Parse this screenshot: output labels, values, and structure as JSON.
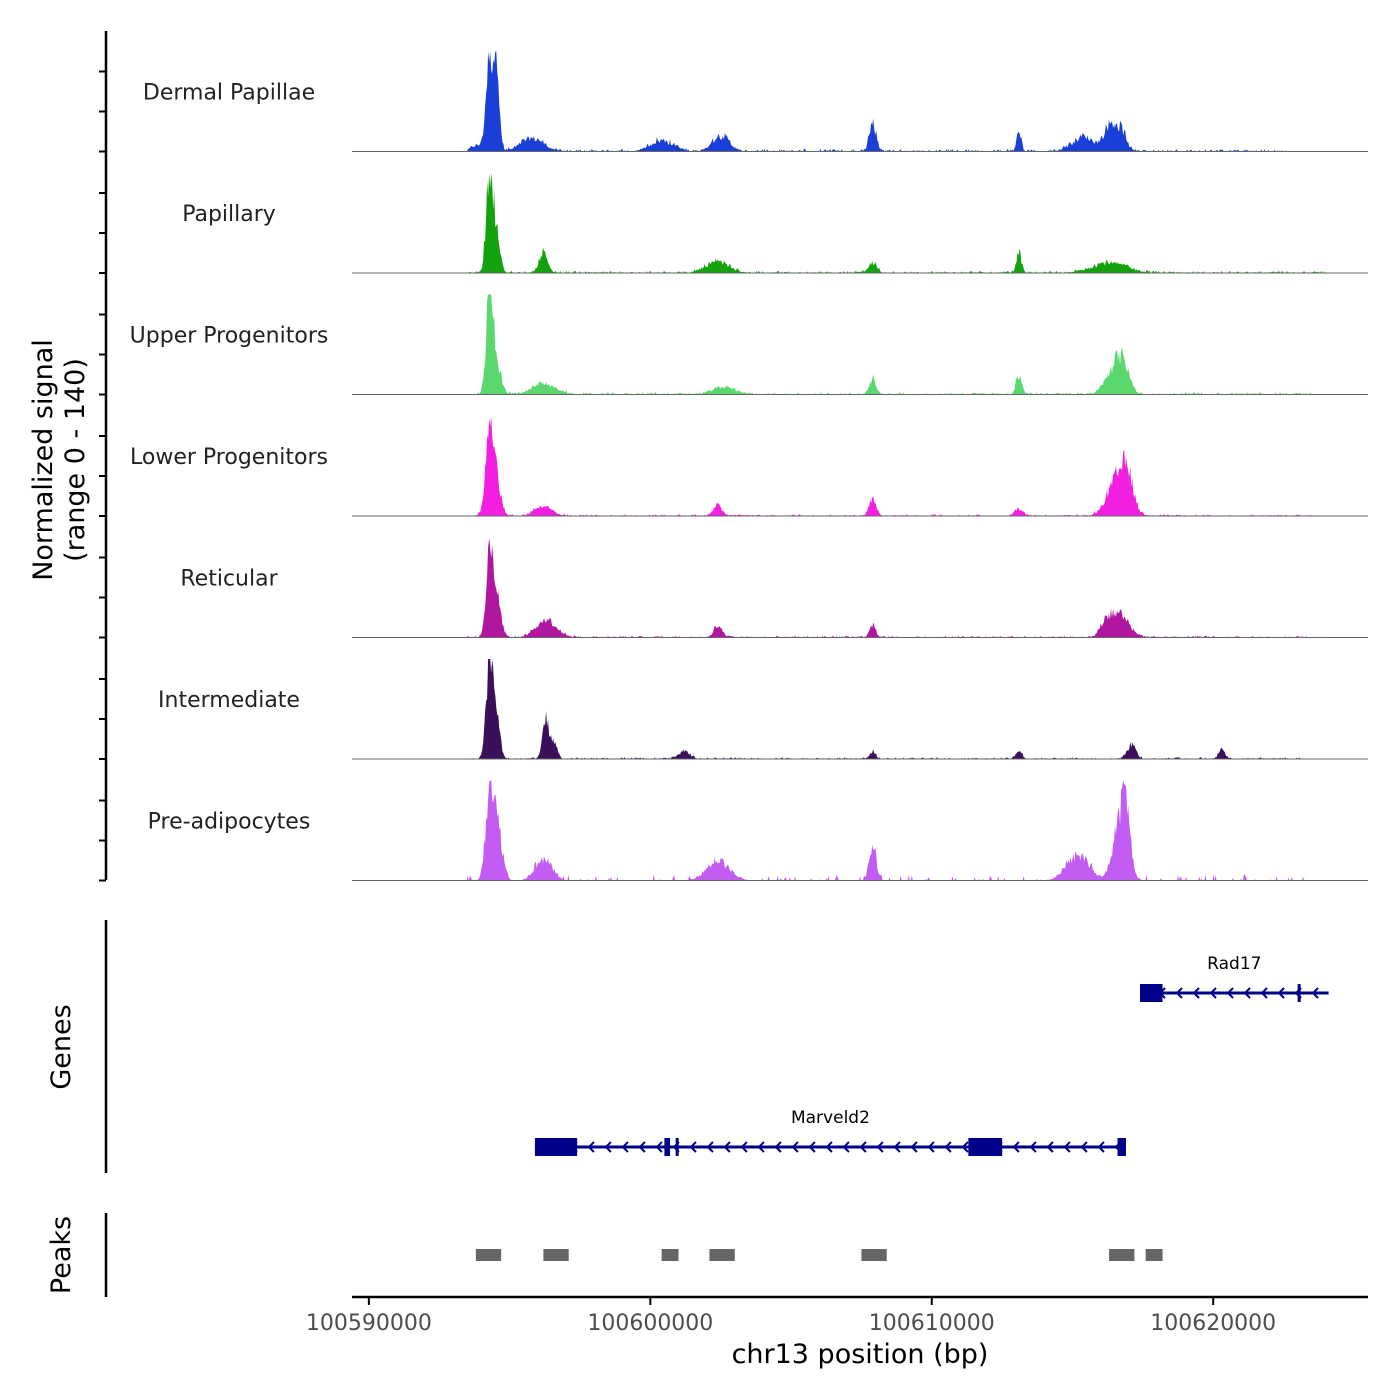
{
  "chart_data": {
    "type": "area",
    "title": "",
    "chromosome": "chr13",
    "xlabel": "chr13 position (bp)",
    "ylabel_line1": "Normalized signal",
    "ylabel_line2": "(range 0 - 140)",
    "ylim": [
      0,
      140
    ],
    "xlim": [
      100589400,
      100625500
    ],
    "x_ticks": [
      100590000,
      100600000,
      100610000,
      100620000
    ],
    "x_tick_labels": [
      "100590000",
      "100600000",
      "100610000",
      "100620000"
    ],
    "tracks": [
      {
        "name": "Dermal Papillae",
        "color": "#1a3fd6",
        "peaks": [
          [
            100594300,
            140,
            130
          ],
          [
            100594550,
            125,
            90
          ],
          [
            100595800,
            18,
            400
          ],
          [
            100600400,
            15,
            400
          ],
          [
            100602500,
            22,
            300
          ],
          [
            100607900,
            40,
            120
          ],
          [
            100613100,
            28,
            80
          ],
          [
            100615400,
            20,
            400
          ],
          [
            100616300,
            32,
            200
          ],
          [
            100616700,
            30,
            200
          ],
          [
            100593800,
            8,
            200
          ]
        ],
        "noise": 6,
        "range": [
          100593500,
          100622600
        ],
        "dense": true
      },
      {
        "name": "Papillary",
        "color": "#13a10e",
        "peaks": [
          [
            100594300,
            150,
            120
          ],
          [
            100594550,
            45,
            120
          ],
          [
            100596200,
            28,
            150
          ],
          [
            100602400,
            15,
            400
          ],
          [
            100607900,
            12,
            150
          ],
          [
            100613100,
            28,
            90
          ],
          [
            100616300,
            14,
            600
          ]
        ],
        "noise": 5,
        "range": [
          100593500,
          100624000
        ],
        "dense": true
      },
      {
        "name": "Upper Progenitors",
        "color": "#5ad86e",
        "peaks": [
          [
            100594300,
            150,
            120
          ],
          [
            100594550,
            40,
            150
          ],
          [
            100596200,
            15,
            400
          ],
          [
            100602600,
            10,
            400
          ],
          [
            100607900,
            22,
            120
          ],
          [
            100613100,
            28,
            100
          ],
          [
            100616500,
            38,
            300
          ],
          [
            100616850,
            30,
            200
          ]
        ],
        "noise": 5,
        "range": [
          100593800,
          100623600
        ],
        "dense": true
      },
      {
        "name": "Lower Progenitors",
        "color": "#f21fe0",
        "peaks": [
          [
            100594300,
            130,
            140
          ],
          [
            100594550,
            40,
            150
          ],
          [
            100596200,
            14,
            300
          ],
          [
            100602400,
            16,
            150
          ],
          [
            100607900,
            22,
            120
          ],
          [
            100613100,
            10,
            150
          ],
          [
            100616600,
            50,
            350
          ],
          [
            100616950,
            40,
            200
          ]
        ],
        "noise": 4,
        "range": [
          100593800,
          100623600
        ],
        "dense": true
      },
      {
        "name": "Reticular",
        "color": "#b0179e",
        "peaks": [
          [
            100594300,
            135,
            120
          ],
          [
            100594550,
            50,
            150
          ],
          [
            100596300,
            25,
            350
          ],
          [
            100602400,
            16,
            150
          ],
          [
            100607900,
            18,
            100
          ],
          [
            100616200,
            22,
            200
          ],
          [
            100616700,
            32,
            300
          ]
        ],
        "noise": 4,
        "range": [
          100593400,
          100624000
        ],
        "dense": true
      },
      {
        "name": "Intermediate",
        "color": "#3c0f5a",
        "peaks": [
          [
            100594300,
            155,
            120
          ],
          [
            100594550,
            50,
            120
          ],
          [
            100596300,
            55,
            120
          ],
          [
            100596600,
            20,
            100
          ],
          [
            100601200,
            10,
            200
          ],
          [
            100607900,
            10,
            100
          ],
          [
            100613100,
            12,
            100
          ],
          [
            100617100,
            20,
            150
          ],
          [
            100620300,
            14,
            100
          ]
        ],
        "noise": 4,
        "range": [
          100593400,
          100623100
        ],
        "dense": true
      },
      {
        "name": "Pre-adipocytes",
        "color": "#c25cf2",
        "peaks": [
          [
            100594300,
            140,
            140
          ],
          [
            100594600,
            65,
            160
          ],
          [
            100596200,
            30,
            300
          ],
          [
            100602400,
            28,
            400
          ],
          [
            100607900,
            50,
            120
          ],
          [
            100615200,
            35,
            400
          ],
          [
            100616700,
            80,
            250
          ],
          [
            100616900,
            55,
            150
          ]
        ],
        "noise": 10,
        "range": [
          100593300,
          100623200
        ],
        "dense": false
      }
    ],
    "genes_label": "Genes",
    "genes": [
      {
        "name": "Rad17",
        "strand": "-",
        "start": 100617400,
        "end": 100624100,
        "exons": [
          [
            100617400,
            100618200
          ],
          [
            100623000,
            100623100
          ]
        ]
      },
      {
        "name": "Marveld2",
        "strand": "-",
        "start": 100595900,
        "end": 100616900,
        "exons": [
          [
            100595900,
            100597400
          ],
          [
            100600500,
            100600700
          ],
          [
            100600900,
            100601000
          ],
          [
            100611300,
            100612500
          ],
          [
            100616600,
            100616900
          ]
        ]
      }
    ],
    "peaks_label": "Peaks",
    "peak_regions": [
      [
        100593800,
        100594700
      ],
      [
        100596200,
        100597100
      ],
      [
        100600400,
        100601000
      ],
      [
        100602100,
        100603000
      ],
      [
        100607500,
        100608400
      ],
      [
        100616300,
        100617200
      ],
      [
        100617600,
        100618200
      ]
    ]
  }
}
